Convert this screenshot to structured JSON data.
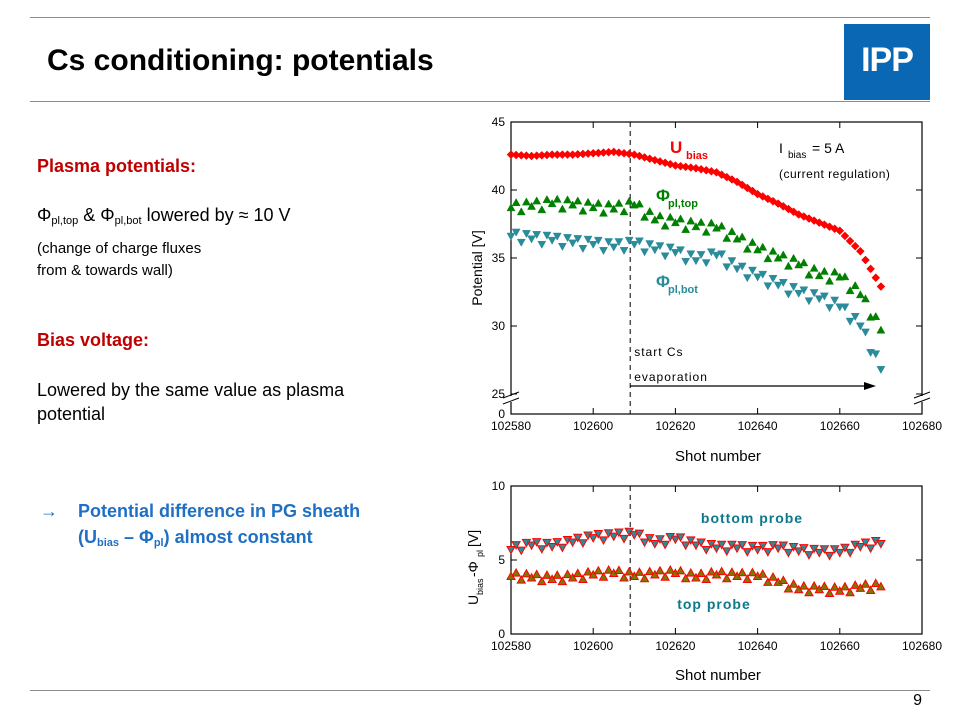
{
  "slide": {
    "title": "Cs conditioning: potentials",
    "logo_text": "IPP",
    "page_number": "9"
  },
  "left_text": {
    "plasma_heading": "Plasma potentials:",
    "phi_line": {
      "sym1": "Φ",
      "sub1": "pl,top",
      "amp": " & Φ",
      "sub2": "pl,bot",
      "rest": " lowered by ≈ 10 V"
    },
    "fluxes_note": [
      "(change of charge fluxes",
      "from & towards wall)"
    ],
    "bias_heading": "Bias voltage:",
    "bias_text": [
      "Lowered by the same value as plasma",
      "potential"
    ],
    "conclusion": {
      "arrow": "→",
      "line1": "Potential difference in PG sheath",
      "line2_a": "(U",
      "line2_sub1": "bias",
      "line2_b": " – Φ",
      "line2_sub2": "pl",
      "line2_c": ") almost constant"
    }
  },
  "colors": {
    "red": "#ff0000",
    "green": "#008000",
    "teal": "#2a8c9a",
    "olive": "#7a7a00",
    "accent_red": "#c00000",
    "accent_blue": "#1f6fc4",
    "logo": "#0a67b3"
  },
  "chart_data": [
    {
      "type": "scatter",
      "xlabel": "Shot number",
      "ylabel": "Potential [V]",
      "xlim": [
        102580,
        102680
      ],
      "xticks": [
        102580,
        102600,
        102620,
        102640,
        102660,
        102680
      ],
      "yticks": [
        0,
        25,
        30,
        35,
        40,
        45
      ],
      "axis_break": [
        0,
        25
      ],
      "marker_line": {
        "x": 102609,
        "text1": "start Cs",
        "text2": "evaporation"
      },
      "annotation": {
        "main": "I",
        "sub": "bias",
        "rest": " = 5 A",
        "note": "(current regulation)"
      },
      "series": [
        {
          "name": "U",
          "name_sub": "bias",
          "marker": "diamond",
          "color": "#ff0000",
          "x": [
            102580,
            102585,
            102590,
            102595,
            102600,
            102605,
            102610,
            102615,
            102620,
            102625,
            102630,
            102635,
            102640,
            102645,
            102650,
            102655,
            102660,
            102665,
            102670
          ],
          "y": [
            42.6,
            42.5,
            42.6,
            42.6,
            42.7,
            42.8,
            42.6,
            42.2,
            41.8,
            41.6,
            41.3,
            40.6,
            39.7,
            39.0,
            38.2,
            37.6,
            37.0,
            35.5,
            32.9
          ]
        },
        {
          "name": "Φ",
          "name_sub": "pl,top",
          "marker": "triangle-up",
          "color": "#008000",
          "x": [
            102580,
            102585,
            102590,
            102595,
            102600,
            102605,
            102610,
            102615,
            102620,
            102625,
            102630,
            102635,
            102640,
            102645,
            102650,
            102655,
            102660,
            102665,
            102670
          ],
          "y": [
            38.7,
            38.8,
            39.0,
            38.9,
            38.7,
            38.6,
            38.9,
            37.8,
            37.6,
            37.3,
            37.2,
            36.4,
            35.6,
            35.0,
            34.5,
            33.7,
            33.6,
            32.3,
            29.7
          ]
        },
        {
          "name": "Φ",
          "name_sub": "pl,bot",
          "marker": "triangle-down",
          "color": "#2a8c9a",
          "x": [
            102580,
            102585,
            102590,
            102595,
            102600,
            102605,
            102610,
            102615,
            102620,
            102625,
            102630,
            102635,
            102640,
            102645,
            102650,
            102655,
            102660,
            102665,
            102670
          ],
          "y": [
            36.6,
            36.4,
            36.3,
            36.1,
            36.0,
            35.8,
            36.0,
            35.6,
            35.4,
            34.8,
            35.2,
            34.2,
            33.6,
            33.0,
            32.4,
            32.0,
            31.4,
            30.0,
            26.8
          ]
        }
      ]
    },
    {
      "type": "scatter",
      "xlabel": "Shot number",
      "ylabel": {
        "a": "U",
        "sub1": "bias",
        "b": " -Φ",
        "sub2": "pl",
        "c": " [V]"
      },
      "xlim": [
        102580,
        102680
      ],
      "ylim": [
        0,
        10
      ],
      "xticks": [
        102580,
        102600,
        102620,
        102640,
        102660,
        102680
      ],
      "yticks": [
        0,
        5,
        10
      ],
      "marker_line": {
        "x": 102609
      },
      "series": [
        {
          "name": "bottom probe",
          "marker": "triangle-down",
          "color": "#2a8c9a",
          "edge": "#ff0000",
          "x": [
            102580,
            102585,
            102590,
            102595,
            102600,
            102605,
            102610,
            102615,
            102620,
            102625,
            102630,
            102635,
            102640,
            102645,
            102650,
            102655,
            102660,
            102665,
            102670
          ],
          "y": [
            5.7,
            6.0,
            5.9,
            6.2,
            6.5,
            6.6,
            6.7,
            6.1,
            6.4,
            6.0,
            5.8,
            5.8,
            5.7,
            5.8,
            5.6,
            5.5,
            5.5,
            5.9,
            6.1
          ]
        },
        {
          "name": "top probe",
          "marker": "triangle-up",
          "color": "#7a7a00",
          "edge": "#ff0000",
          "x": [
            102580,
            102585,
            102590,
            102595,
            102600,
            102605,
            102610,
            102615,
            102620,
            102625,
            102630,
            102635,
            102640,
            102645,
            102650,
            102655,
            102660,
            102665,
            102670
          ],
          "y": [
            3.9,
            3.8,
            3.7,
            3.8,
            4.0,
            4.1,
            3.9,
            4.0,
            4.1,
            3.8,
            4.0,
            3.9,
            3.9,
            3.5,
            3.0,
            3.0,
            2.9,
            3.1,
            3.2
          ]
        }
      ]
    }
  ]
}
